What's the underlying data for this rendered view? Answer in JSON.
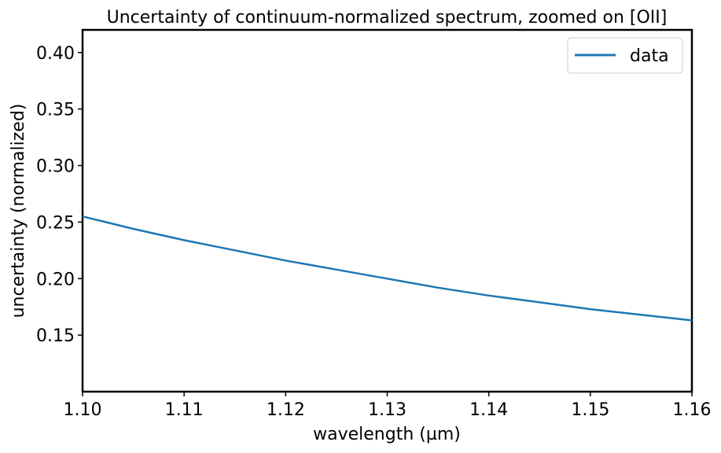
{
  "chart_data": {
    "type": "line",
    "title": "Uncertainty of continuum-normalized spectrum, zoomed on [OII]",
    "xlabel": "wavelength (µm)",
    "ylabel": "uncertainty (normalized)",
    "xlim": [
      1.1,
      1.16
    ],
    "ylim": [
      0.1,
      0.42
    ],
    "xticks": [
      1.1,
      1.11,
      1.12,
      1.13,
      1.14,
      1.15,
      1.16
    ],
    "xtick_labels": [
      "1.10",
      "1.11",
      "1.12",
      "1.13",
      "1.14",
      "1.15",
      "1.16"
    ],
    "yticks": [
      0.15,
      0.2,
      0.25,
      0.3,
      0.35,
      0.4
    ],
    "ytick_labels": [
      "0.15",
      "0.20",
      "0.25",
      "0.30",
      "0.35",
      "0.40"
    ],
    "grid": false,
    "legend": {
      "placement": "top-right"
    },
    "series": [
      {
        "name": "data",
        "color": "#1f77b4",
        "x": [
          1.1,
          1.105,
          1.11,
          1.115,
          1.12,
          1.125,
          1.13,
          1.135,
          1.14,
          1.145,
          1.15,
          1.155,
          1.16
        ],
        "y": [
          0.255,
          0.244,
          0.234,
          0.225,
          0.216,
          0.208,
          0.2,
          0.192,
          0.185,
          0.179,
          0.173,
          0.168,
          0.163
        ]
      }
    ]
  }
}
